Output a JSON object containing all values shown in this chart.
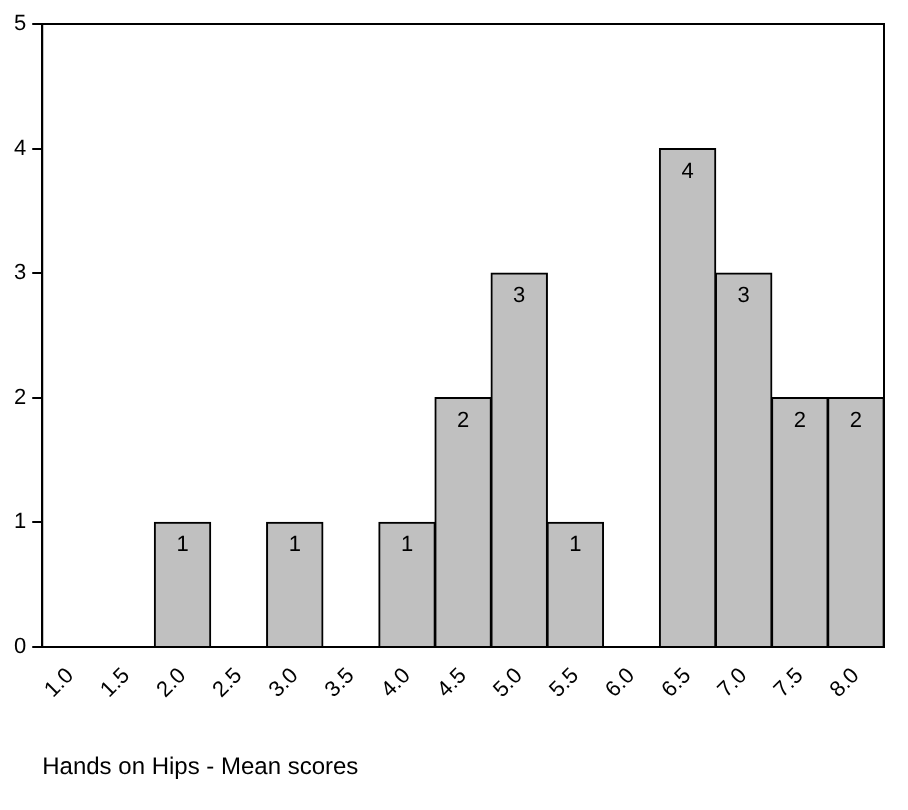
{
  "chart_data": {
    "type": "bar",
    "xlabel": "Hands on Hips - Mean scores",
    "categories": [
      "1.0",
      "1.5",
      "2.0",
      "2.5",
      "3.0",
      "3.5",
      "4.0",
      "4.5",
      "5.0",
      "5.5",
      "6.0",
      "6.5",
      "7.0",
      "7.5",
      "8.0"
    ],
    "values": [
      0,
      0,
      1,
      0,
      1,
      0,
      1,
      2,
      3,
      1,
      0,
      4,
      3,
      2,
      2
    ],
    "value_labels": [
      null,
      null,
      "1",
      null,
      "1",
      null,
      "1",
      "2",
      "3",
      "1",
      null,
      "4",
      "3",
      "2",
      "2"
    ],
    "color": "#c0c0c0",
    "ylim": [
      0,
      5
    ],
    "yticks": [
      0,
      1,
      2,
      3,
      4,
      5
    ],
    "grid": false,
    "legend": false
  }
}
